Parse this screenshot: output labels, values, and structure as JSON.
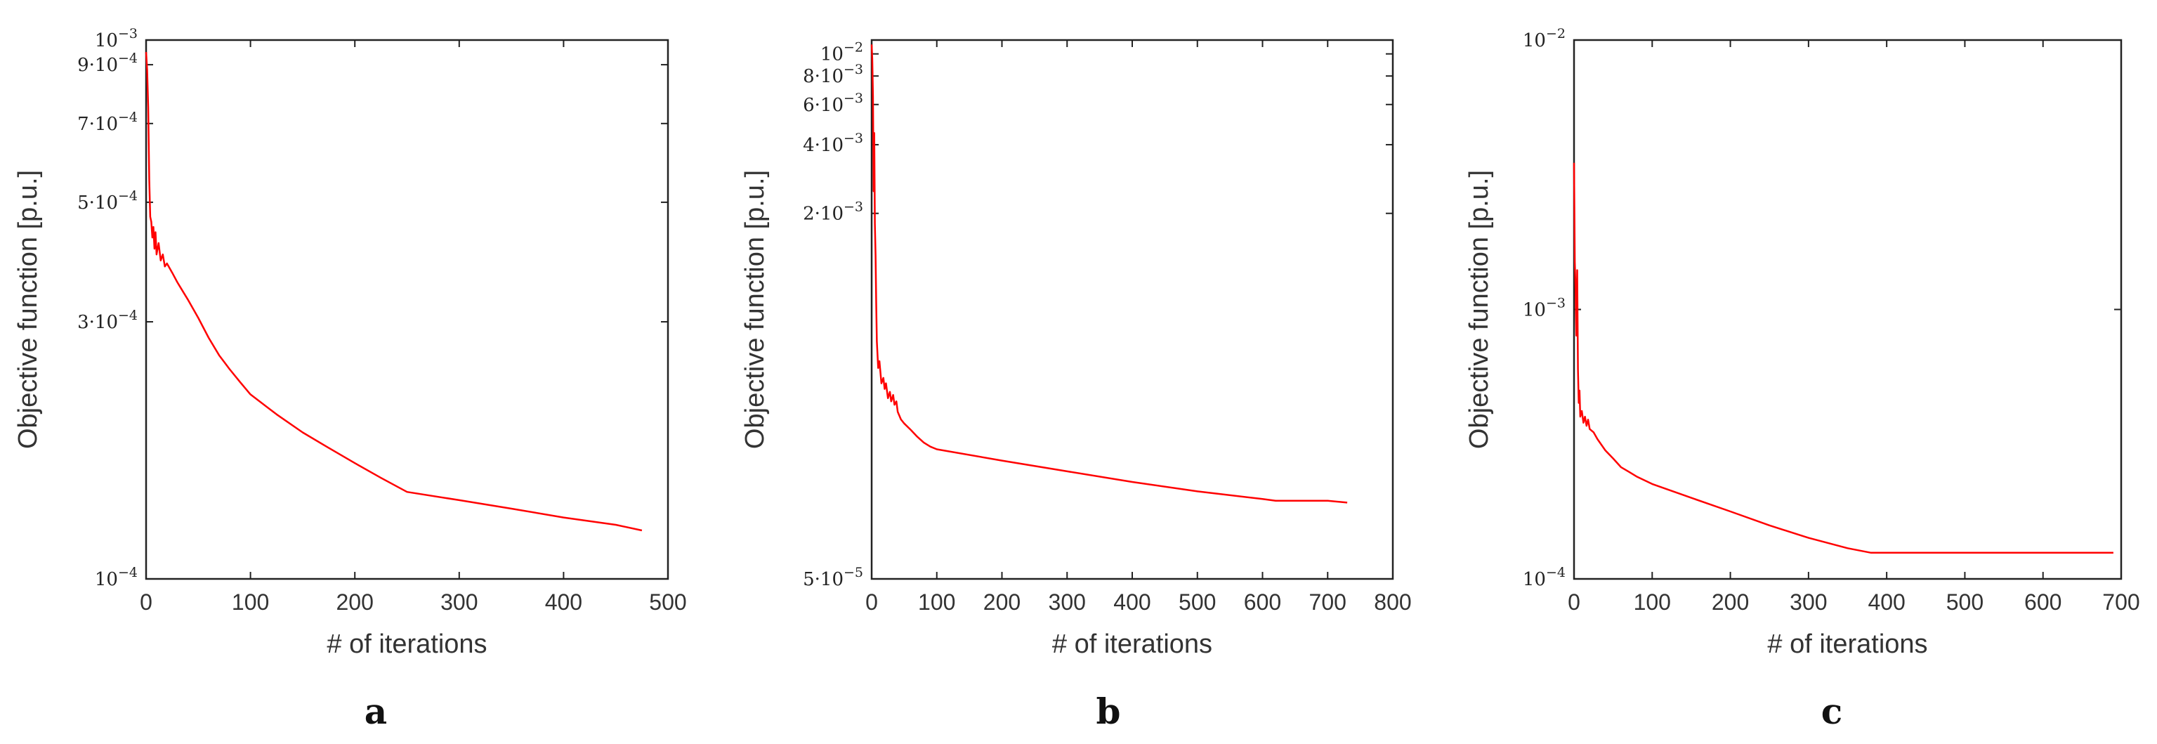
{
  "chart_data": [
    {
      "type": "line",
      "panel_label": "a",
      "title": "",
      "xlabel": "# of iterations",
      "ylabel": "Objective function [p.u.]",
      "yscale": "log",
      "xlim": [
        0,
        500
      ],
      "ylim": [
        0.0001,
        0.001
      ],
      "grid": false,
      "legend": "none",
      "line_color": "#ff0000",
      "x_ticks": [
        0,
        100,
        200,
        300,
        400,
        500
      ],
      "x_tick_labels": [
        "0",
        "100",
        "200",
        "300",
        "400",
        "500"
      ],
      "y_ticks": [
        {
          "value": 0.0001,
          "base": "10",
          "exp": "−4"
        },
        {
          "value": 0.0003,
          "mantissa": "3·10",
          "exp": "−4"
        },
        {
          "value": 0.0005,
          "mantissa": "5·10",
          "exp": "−4"
        },
        {
          "value": 0.0007,
          "mantissa": "7·10",
          "exp": "−4"
        },
        {
          "value": 0.0009,
          "mantissa": "9·10",
          "exp": "−4"
        },
        {
          "value": 0.001,
          "base": "10",
          "exp": "−3"
        }
      ],
      "series": [
        {
          "name": "objective",
          "x": [
            0,
            1,
            2,
            3,
            4,
            5,
            6,
            7,
            8,
            9,
            10,
            12,
            14,
            16,
            18,
            20,
            25,
            30,
            40,
            50,
            60,
            70,
            80,
            90,
            100,
            125,
            150,
            175,
            200,
            225,
            250,
            300,
            350,
            400,
            450,
            475
          ],
          "y": [
            0.00095,
            0.00088,
            0.00075,
            0.00055,
            0.00047,
            0.00046,
            0.00043,
            0.00045,
            0.00041,
            0.00044,
            0.0004,
            0.00042,
            0.00039,
            0.0004,
            0.00038,
            0.000385,
            0.00037,
            0.000355,
            0.00033,
            0.000305,
            0.00028,
            0.00026,
            0.000245,
            0.000232,
            0.00022,
            0.000202,
            0.000187,
            0.000175,
            0.000164,
            0.000154,
            0.000145,
            0.00014,
            0.000135,
            0.00013,
            0.000126,
            0.000123
          ]
        }
      ]
    },
    {
      "type": "line",
      "panel_label": "b",
      "title": "",
      "xlabel": "# of iterations",
      "ylabel": "Objective function [p.u.]",
      "yscale": "log",
      "xlim": [
        0,
        800
      ],
      "ylim": [
        5e-05,
        0.0115
      ],
      "grid": false,
      "legend": "none",
      "line_color": "#ff0000",
      "x_ticks": [
        0,
        100,
        200,
        300,
        400,
        500,
        600,
        700,
        800
      ],
      "x_tick_labels": [
        "0",
        "100",
        "200",
        "300",
        "400",
        "500",
        "600",
        "700",
        "800"
      ],
      "y_ticks": [
        {
          "value": 5e-05,
          "mantissa": "5·10",
          "exp": "−5"
        },
        {
          "value": 0.002,
          "mantissa": "2·10",
          "exp": "−3"
        },
        {
          "value": 0.004,
          "mantissa": "4·10",
          "exp": "−3"
        },
        {
          "value": 0.006,
          "mantissa": "6·10",
          "exp": "−3"
        },
        {
          "value": 0.008,
          "mantissa": "8·10",
          "exp": "−3"
        },
        {
          "value": 0.01,
          "base": "10",
          "exp": "−2"
        }
      ],
      "series": [
        {
          "name": "objective",
          "x": [
            0,
            1,
            2,
            3,
            4,
            5,
            6,
            7,
            8,
            10,
            12,
            15,
            18,
            20,
            22,
            25,
            28,
            30,
            33,
            35,
            38,
            40,
            45,
            50,
            60,
            70,
            80,
            90,
            100,
            200,
            300,
            400,
            500,
            600,
            620,
            700,
            730
          ],
          "y": [
            0.011,
            0.0095,
            0.0065,
            0.0025,
            0.0045,
            0.0018,
            0.0013,
            0.0008,
            0.00055,
            0.00042,
            0.00045,
            0.00036,
            0.00038,
            0.00034,
            0.00036,
            0.00031,
            0.00033,
            0.0003,
            0.00032,
            0.00029,
            0.0003,
            0.00027,
            0.00025,
            0.00024,
            0.000225,
            0.00021,
            0.000198,
            0.00019,
            0.000185,
            0.000165,
            0.000148,
            0.000133,
            0.000121,
            0.000112,
            0.00011,
            0.00011,
            0.000108
          ]
        }
      ]
    },
    {
      "type": "line",
      "panel_label": "c",
      "title": "",
      "xlabel": "# of iterations",
      "ylabel": "Objective function [p.u.]",
      "yscale": "log",
      "xlim": [
        0,
        700
      ],
      "ylim": [
        0.0001,
        0.01
      ],
      "grid": false,
      "legend": "none",
      "line_color": "#ff0000",
      "x_ticks": [
        0,
        100,
        200,
        300,
        400,
        500,
        600,
        700
      ],
      "x_tick_labels": [
        "0",
        "100",
        "200",
        "300",
        "400",
        "500",
        "600",
        "700"
      ],
      "y_ticks": [
        {
          "value": 0.0001,
          "base": "10",
          "exp": "−4"
        },
        {
          "value": 0.001,
          "base": "10",
          "exp": "−3"
        },
        {
          "value": 0.01,
          "base": "10",
          "exp": "−2"
        }
      ],
      "series": [
        {
          "name": "objective",
          "x": [
            0,
            1,
            2,
            3,
            4,
            5,
            6,
            7,
            8,
            10,
            12,
            14,
            16,
            18,
            20,
            25,
            30,
            40,
            50,
            60,
            70,
            80,
            100,
            150,
            200,
            250,
            300,
            350,
            380,
            400,
            500,
            600,
            690
          ],
          "y": [
            0.0035,
            0.0015,
            0.0012,
            0.0008,
            0.0014,
            0.0006,
            0.00045,
            0.0005,
            0.0004,
            0.00042,
            0.00038,
            0.0004,
            0.00037,
            0.00039,
            0.00036,
            0.00035,
            0.00033,
            0.0003,
            0.00028,
            0.00026,
            0.00025,
            0.00024,
            0.000225,
            0.0002,
            0.000178,
            0.000158,
            0.000142,
            0.00013,
            0.000125,
            0.000125,
            0.000125,
            0.000125,
            0.000125
          ]
        }
      ]
    }
  ]
}
